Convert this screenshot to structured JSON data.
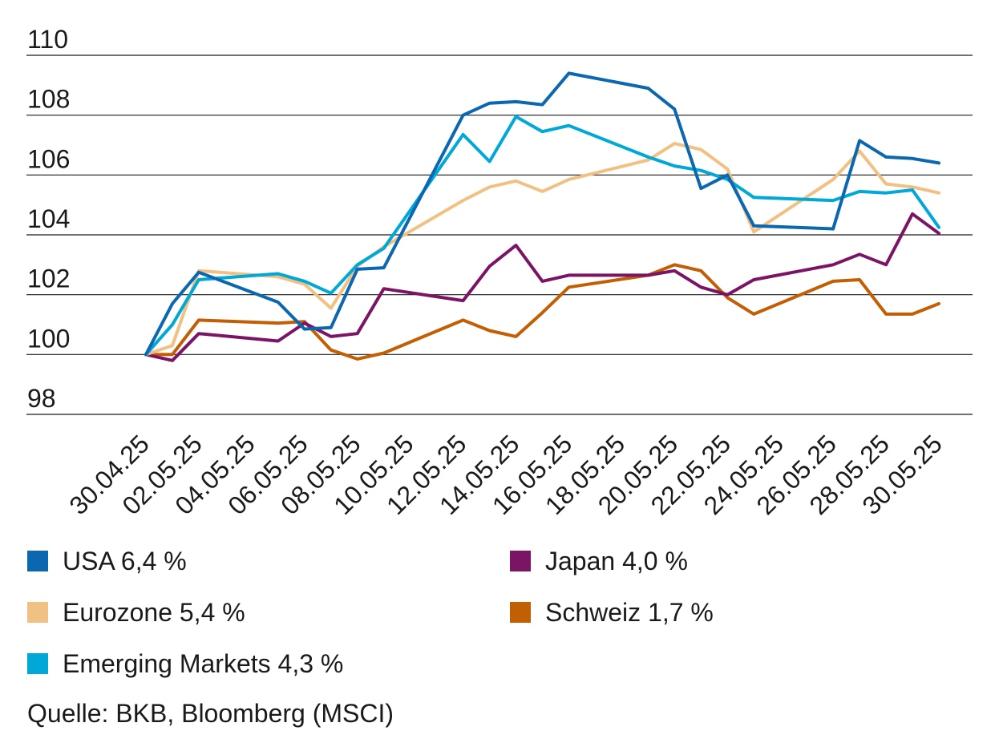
{
  "chart_data": {
    "type": "line",
    "title": "",
    "xlabel": "",
    "ylabel": "",
    "ylim": [
      98,
      110
    ],
    "yticks": [
      98,
      100,
      102,
      104,
      106,
      108,
      110
    ],
    "grid": true,
    "x_ticks": [
      "30.04.25",
      "02.05.25",
      "04.05.25",
      "06.05.25",
      "08.05.25",
      "10.05.25",
      "12.05.25",
      "14.05.25",
      "16.05.25",
      "18.05.25",
      "20.05.25",
      "22.05.25",
      "24.05.25",
      "26.05.25",
      "28.05.25",
      "30.05.25"
    ],
    "x": [
      "30.04.25",
      "01.05.25",
      "02.05.25",
      "05.05.25",
      "06.05.25",
      "07.05.25",
      "08.05.25",
      "09.05.25",
      "10.05.25",
      "12.05.25",
      "13.05.25",
      "14.05.25",
      "15.05.25",
      "16.05.25",
      "19.05.25",
      "20.05.25",
      "21.05.25",
      "22.05.25",
      "23.05.25",
      "26.05.25",
      "27.05.25",
      "28.05.25",
      "29.05.25",
      "30.05.25"
    ],
    "series": [
      {
        "name": "Schweiz 1,7 %",
        "color": "#c25e03",
        "values": [
          100.0,
          100.0,
          101.15,
          101.05,
          101.1,
          100.15,
          99.85,
          100.05,
          null,
          101.15,
          100.8,
          100.6,
          101.4,
          102.25,
          102.65,
          103.0,
          102.8,
          101.9,
          101.35,
          102.45,
          102.5,
          101.35,
          101.35,
          101.7
        ]
      },
      {
        "name": "Japan 4,0 %",
        "color": "#7b1464",
        "values": [
          100.0,
          99.8,
          100.7,
          100.45,
          101.05,
          100.6,
          100.7,
          102.2,
          null,
          101.8,
          102.95,
          103.65,
          102.45,
          102.65,
          102.65,
          102.8,
          102.25,
          102.0,
          102.5,
          103.0,
          103.35,
          103.0,
          104.7,
          104.05
        ]
      },
      {
        "name": "Eurozone 5,4 %",
        "color": "#f1c083",
        "values": [
          100.0,
          100.3,
          102.8,
          102.6,
          102.35,
          101.55,
          102.95,
          103.6,
          null,
          105.15,
          105.6,
          105.8,
          105.45,
          105.85,
          106.5,
          107.05,
          106.85,
          106.2,
          104.1,
          105.85,
          106.8,
          105.7,
          105.6,
          105.4
        ]
      },
      {
        "name": "Emerging Markets 4,3 %",
        "color": "#00a8d8",
        "values": [
          100.0,
          101.0,
          102.5,
          102.7,
          102.45,
          102.05,
          103.0,
          103.55,
          null,
          107.35,
          106.45,
          107.95,
          107.45,
          107.65,
          106.6,
          106.3,
          106.15,
          105.85,
          105.25,
          105.15,
          105.45,
          105.4,
          105.5,
          104.25
        ]
      },
      {
        "name": "USA 6,4 %",
        "color": "#0b67b0",
        "values": [
          100.0,
          101.7,
          102.75,
          101.75,
          100.85,
          100.9,
          102.85,
          102.9,
          null,
          108.0,
          108.4,
          108.45,
          108.35,
          109.4,
          108.9,
          108.2,
          105.55,
          106.0,
          104.3,
          104.2,
          107.15,
          106.6,
          106.55,
          106.4
        ]
      }
    ],
    "legend_position": "bottom"
  },
  "legend": [
    {
      "label": "USA 6,4 %",
      "color": "#0b67b0"
    },
    {
      "label": "Japan 4,0 %",
      "color": "#7b1464"
    },
    {
      "label": "Eurozone 5,4 %",
      "color": "#f1c083"
    },
    {
      "label": "Schweiz 1,7 %",
      "color": "#c25e03"
    },
    {
      "label": "Emerging Markets 4,3 %",
      "color": "#00a8d8"
    }
  ],
  "source": "Quelle: BKB, Bloomberg (MSCI)"
}
